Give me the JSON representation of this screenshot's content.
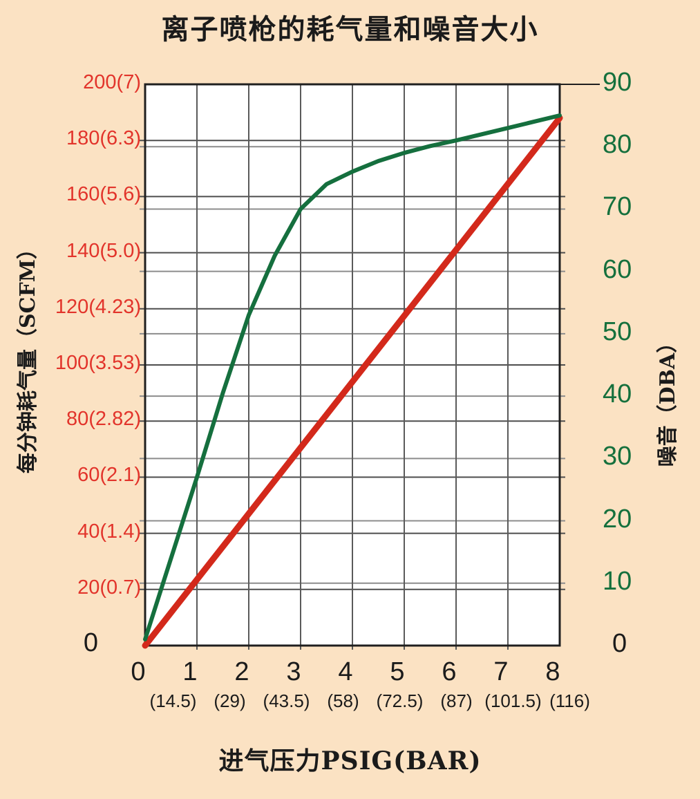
{
  "title": "离子喷枪的耗气量和噪音大小",
  "chart_data": {
    "type": "line",
    "page_bg": "#fbe2c3",
    "plot_bg": "#ffffff",
    "grid": true,
    "x_axis": {
      "label": "进气压力PSIG(BAR)",
      "range": [
        0,
        8
      ],
      "ticks": [
        "0",
        "1",
        "2",
        "3",
        "4",
        "5",
        "6",
        "7",
        "8"
      ],
      "sub_ticks": [
        "",
        "(14.5)",
        "(29)",
        "(43.5)",
        "(58)",
        "(72.5)",
        "(87)",
        "(101.5)",
        "(116)"
      ]
    },
    "y_left": {
      "label": "每分钟耗气量（SCFM）",
      "range": [
        0,
        200
      ],
      "tick_step": 20,
      "color": "#e2342b",
      "zero_color": "#1b1b1b",
      "ticks": [
        "0",
        "20(0.7)",
        "40(1.4)",
        "60(2.1)",
        "80(2.82)",
        "100(3.53)",
        "120(4.23)",
        "140(5.0)",
        "160(5.6)",
        "180(6.3)",
        "200(7)"
      ]
    },
    "y_right": {
      "label": "噪音（DBA）",
      "range": [
        0,
        90
      ],
      "tick_step": 10,
      "color": "#15703d",
      "zero_color": "#1b1b1b",
      "ticks": [
        "0",
        "10",
        "20",
        "30",
        "40",
        "50",
        "60",
        "70",
        "80",
        "90"
      ]
    },
    "series": [
      {
        "name": "air-consumption-line",
        "axis": "left",
        "color": "#d3291b",
        "stroke_width": 9,
        "points": [
          [
            0,
            0
          ],
          [
            8,
            188
          ]
        ]
      },
      {
        "name": "noise-curve",
        "axis": "right",
        "color": "#156f3e",
        "stroke_width": 6,
        "points": [
          [
            0,
            1
          ],
          [
            0.5,
            14
          ],
          [
            1,
            27
          ],
          [
            1.5,
            40.5
          ],
          [
            2,
            53
          ],
          [
            2.5,
            62.5
          ],
          [
            3,
            70
          ],
          [
            3.5,
            74
          ],
          [
            4,
            76
          ],
          [
            4.5,
            77.7
          ],
          [
            5,
            79
          ],
          [
            5.5,
            80.1
          ],
          [
            6,
            81
          ],
          [
            6.5,
            82
          ],
          [
            7,
            83
          ],
          [
            7.5,
            84
          ],
          [
            8,
            85
          ]
        ]
      }
    ]
  }
}
